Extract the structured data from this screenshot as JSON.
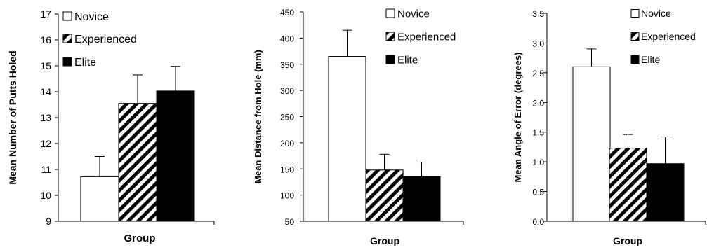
{
  "chart_data": [
    {
      "type": "bar",
      "xlabel": "Group",
      "ylabel": "Mean Number of Putts Holed",
      "ylim": [
        9,
        17
      ],
      "yticks": [
        "9",
        "10",
        "11",
        "12",
        "13",
        "14",
        "15",
        "16",
        "17"
      ],
      "legend": {
        "placement": "top-left",
        "entries": [
          "Novice",
          "Experienced",
          "Elite"
        ]
      },
      "series": [
        {
          "name": "Novice",
          "value": 10.72,
          "error": 0.78,
          "fill": "white"
        },
        {
          "name": "Experienced",
          "value": 13.55,
          "error": 1.1,
          "fill": "hatched"
        },
        {
          "name": "Elite",
          "value": 14.03,
          "error": 0.95,
          "fill": "black"
        }
      ]
    },
    {
      "type": "bar",
      "xlabel": "Group",
      "ylabel": "Mean Distance from Hole (mm)",
      "ylim": [
        50,
        450
      ],
      "yticks": [
        "50",
        "100",
        "150",
        "200",
        "250",
        "300",
        "350",
        "400",
        "450"
      ],
      "legend": {
        "placement": "top-right",
        "entries": [
          "Novice",
          "Experienced",
          "Elite"
        ]
      },
      "series": [
        {
          "name": "Novice",
          "value": 365,
          "error": 50,
          "fill": "white"
        },
        {
          "name": "Experienced",
          "value": 148,
          "error": 30,
          "fill": "hatched"
        },
        {
          "name": "Elite",
          "value": 135,
          "error": 28,
          "fill": "black"
        }
      ]
    },
    {
      "type": "bar",
      "xlabel": "Group",
      "ylabel": "Mean Angle of Error (degrees)",
      "ylim": [
        0,
        3.5
      ],
      "yticks": [
        "0.0",
        "0.5",
        "1.0",
        "1.5",
        "2.0",
        "2.5",
        "3.0",
        "3.5"
      ],
      "legend": {
        "placement": "top-right",
        "entries": [
          "Novice",
          "Experienced",
          "Elite"
        ]
      },
      "series": [
        {
          "name": "Novice",
          "value": 2.6,
          "error": 0.3,
          "fill": "white"
        },
        {
          "name": "Experienced",
          "value": 1.23,
          "error": 0.23,
          "fill": "hatched"
        },
        {
          "name": "Elite",
          "value": 0.97,
          "error": 0.45,
          "fill": "black"
        }
      ]
    }
  ]
}
